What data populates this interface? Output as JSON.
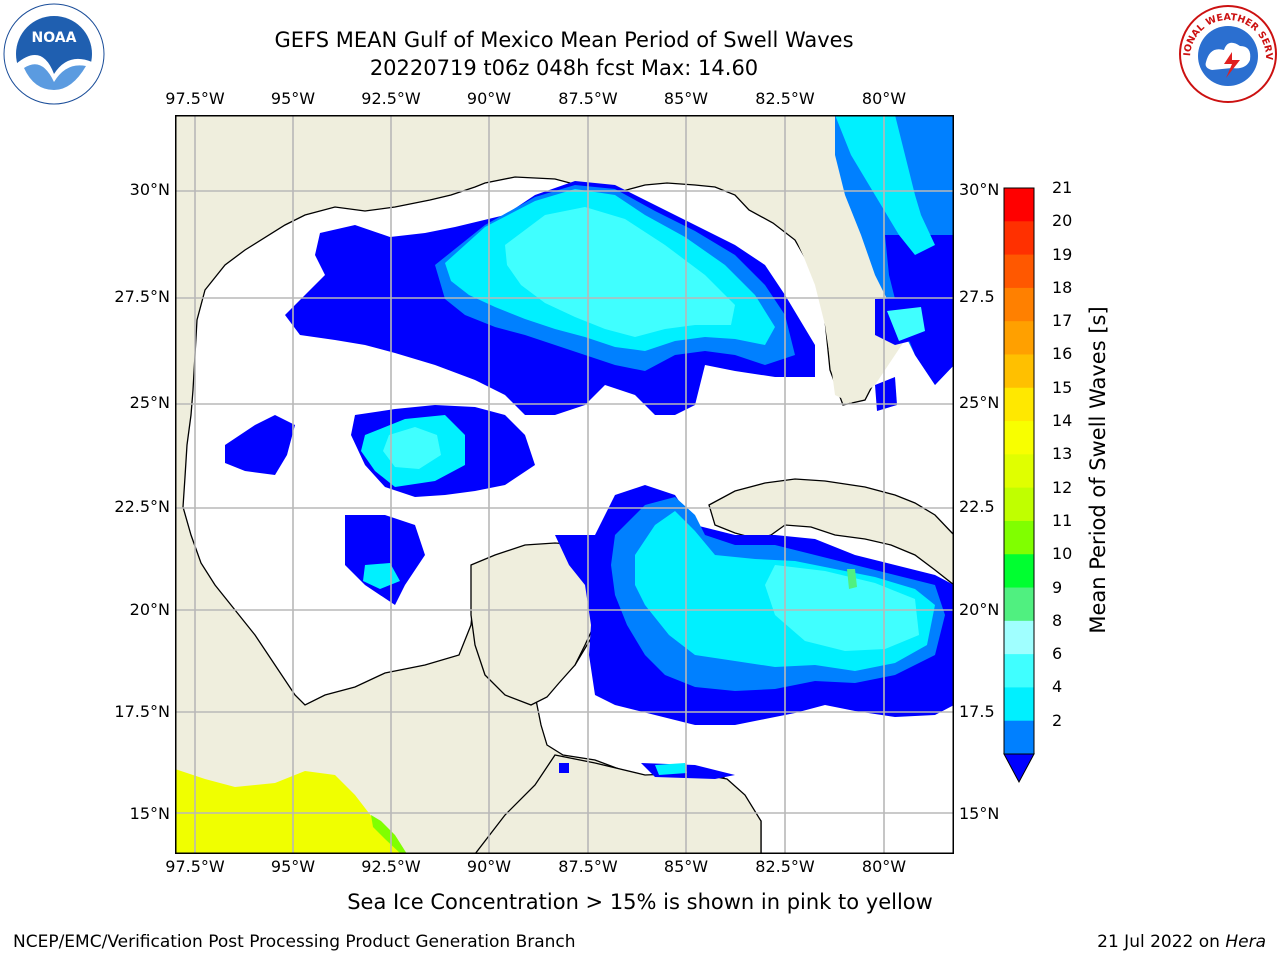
{
  "header": {
    "title": "GEFS MEAN Gulf of Mexico Mean Period of Swell Waves",
    "subtitle": "20220719 t06z 048h fcst   Max: 14.60"
  },
  "logos": {
    "left_text": "NOAA",
    "right_text": "NATIONAL WEATHER SERVICE"
  },
  "map": {
    "lon_ticks": [
      "97.5°W",
      "95°W",
      "92.5°W",
      "90°W",
      "87.5°W",
      "85°W",
      "82.5°W",
      "80°W"
    ],
    "lat_ticks_left": [
      "30°N",
      "27.5°N",
      "25°N",
      "22.5°N",
      "20°N",
      "17.5°N",
      "15°N"
    ],
    "lat_ticks_right": [
      "30°N",
      "27.5",
      "25°N",
      "22.5",
      "20°N",
      "17.5",
      "15°N"
    ],
    "colors": {
      "land": "#efeedd",
      "grid": "#b8b8b8",
      "ocean": "#ffffff"
    }
  },
  "colorbar": {
    "label": "Mean Period of Swell Waves [s]",
    "ticks": [
      "21",
      "20",
      "19",
      "18",
      "17",
      "16",
      "15",
      "14",
      "13",
      "12",
      "11",
      "10",
      "9",
      "8",
      "6",
      "4",
      "2"
    ],
    "colors": [
      "#ff0000",
      "#ff3000",
      "#ff5800",
      "#ff8000",
      "#ffa000",
      "#ffc000",
      "#ffe800",
      "#f8ff00",
      "#e0ff00",
      "#c0ff00",
      "#80ff00",
      "#00ff30",
      "#50f080",
      "#a0ffff",
      "#40ffff",
      "#00f0ff",
      "#0080ff"
    ],
    "under_color": "#0000ff"
  },
  "footer": {
    "note": "Sea Ice Concentration > 15% is shown in pink to yellow",
    "credit": "NCEP/EMC/Verification Post Processing Product Generation Branch",
    "date": "21 Jul 2022 on ",
    "machine": "Hera"
  }
}
